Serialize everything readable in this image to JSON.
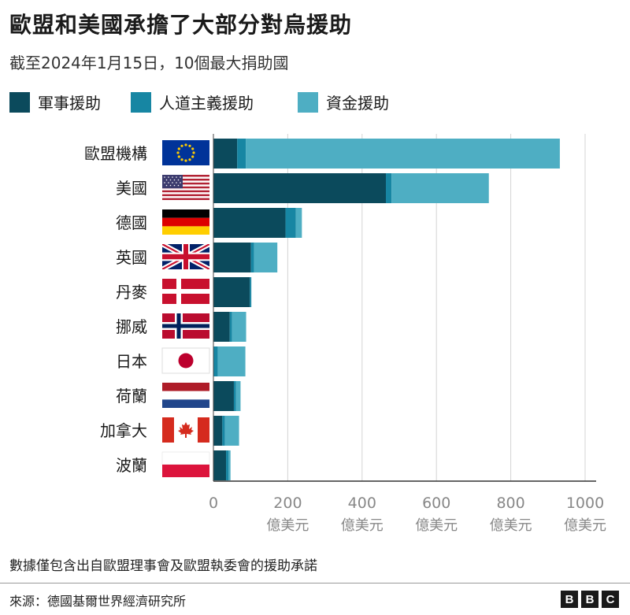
{
  "title": "歐盟和美國承擔了大部分對烏援助",
  "subtitle": "截至2024年1月15日，10個最大捐助國",
  "legend": [
    {
      "label": "軍事援助",
      "color": "#0b4a5c"
    },
    {
      "label": "人道主義援助",
      "color": "#1786a3"
    },
    {
      "label": "資金援助",
      "color": "#4eaec3"
    }
  ],
  "chart_data": {
    "type": "bar",
    "orientation": "horizontal",
    "stacked": true,
    "title": "歐盟和美國承擔了大部分對烏援助",
    "subtitle": "截至2024年1月15日，10個最大捐助國",
    "categories": [
      "歐盟機構",
      "美國",
      "德國",
      "英國",
      "丹麥",
      "挪威",
      "日本",
      "荷蘭",
      "加拿大",
      "波蘭"
    ],
    "series": [
      {
        "name": "軍事援助",
        "color": "#0b4a5c",
        "values": [
          64,
          464,
          194,
          101,
          98,
          44,
          0,
          55,
          24,
          34
        ]
      },
      {
        "name": "人道主義援助",
        "color": "#1786a3",
        "values": [
          23,
          15,
          28,
          8,
          4,
          6,
          12,
          6,
          7,
          7
        ]
      },
      {
        "name": "資金援助",
        "color": "#4eaec3",
        "values": [
          845,
          262,
          16,
          63,
          0,
          38,
          74,
          12,
          38,
          5
        ]
      }
    ],
    "x_ticks": [
      0,
      200,
      400,
      600,
      800,
      1000
    ],
    "x_unit": "億美元",
    "xlim": [
      0,
      1000
    ]
  },
  "flags": [
    "eu-flag-icon",
    "us-flag-icon",
    "germany-flag-icon",
    "uk-flag-icon",
    "denmark-flag-icon",
    "norway-flag-icon",
    "japan-flag-icon",
    "netherlands-flag-icon",
    "canada-flag-icon",
    "poland-flag-icon"
  ],
  "footnote": "數據僅包含出自歐盟理事會及歐盟執委會的援助承諾",
  "source": "來源：德國基爾世界經濟研究所",
  "brand": [
    "B",
    "B",
    "C"
  ]
}
